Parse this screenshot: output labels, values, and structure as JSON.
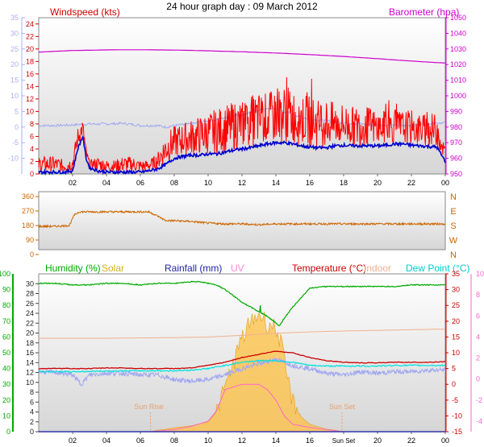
{
  "title": "24 hour graph day : 09 March 2012",
  "colors": {
    "wind_gust": "#ff0000",
    "wind_avg": "#0000cc",
    "dir": "#cc6600",
    "baro": "#cc00cc",
    "hum": "#00aa00",
    "temp": "#cc0000",
    "indoor": "#f0b090",
    "dew": "#00e0e0",
    "chill": "#a0a8f0",
    "solar": "#ffc040",
    "uv": "#ff66cc",
    "rain": "#3333aa",
    "sun_marker": "#e8a070",
    "plot_bg_top": "#ffffff",
    "plot_bg_bottom": "#d8d8d8"
  },
  "chart_data": [
    {
      "type": "line",
      "id": "wind_baro",
      "left_label": "Windspeed (kts)",
      "right_label": "Barometer (hpa)",
      "wind_ylim": [
        0,
        25
      ],
      "wind_ticks": [
        0,
        2,
        4,
        6,
        8,
        10,
        12,
        14,
        16,
        18,
        20,
        22,
        24
      ],
      "baro_ylim": [
        950,
        1050
      ],
      "baro_ticks": [
        950,
        960,
        970,
        980,
        990,
        1000,
        1010,
        1020,
        1030,
        1040,
        1050
      ],
      "temp_axis_ticks": [
        -10,
        -5,
        0,
        5,
        10,
        15,
        20,
        25,
        30,
        35
      ],
      "temp_ylim": [
        -15,
        35
      ],
      "x_ticks": [
        "02",
        "04",
        "06",
        "08",
        "10",
        "12",
        "14",
        "16",
        "18",
        "20",
        "22",
        "00"
      ],
      "x_range_hours": [
        0,
        24
      ],
      "series": [
        {
          "key": "gust",
          "x": [
            0,
            0.5,
            1,
            1.5,
            2,
            2.3,
            2.6,
            2.8,
            3,
            3.5,
            4,
            4.5,
            5,
            5.5,
            6,
            6.5,
            7,
            7.5,
            8,
            8.5,
            9,
            9.5,
            10,
            10.5,
            11,
            11.5,
            12,
            12.5,
            13,
            13.5,
            14,
            14.5,
            15,
            15.5,
            16,
            16.5,
            17,
            17.5,
            18,
            18.5,
            19,
            19.5,
            20,
            20.5,
            21,
            21.5,
            22,
            22.5,
            23,
            23.5,
            24
          ],
          "y": [
            2.5,
            2.5,
            2.5,
            2,
            2.5,
            7,
            8.5,
            4,
            2,
            2.5,
            2,
            2,
            2.5,
            2.5,
            2,
            2,
            3,
            6,
            7,
            7.5,
            8,
            8.5,
            9,
            9.5,
            10,
            10.5,
            11,
            11.5,
            12,
            12,
            12.5,
            13,
            12.5,
            12,
            11.5,
            11,
            11,
            10.5,
            10.5,
            10,
            10,
            10,
            9.5,
            9.5,
            9.5,
            9.5,
            9.5,
            9,
            9,
            9,
            4
          ]
        },
        {
          "key": "avg",
          "x": [
            0,
            0.5,
            1,
            1.5,
            2,
            2.3,
            2.6,
            2.8,
            3,
            3.5,
            4,
            4.5,
            5,
            5.5,
            6,
            6.5,
            7,
            7.5,
            8,
            8.5,
            9,
            9.5,
            10,
            10.5,
            11,
            11.5,
            12,
            12.5,
            13,
            13.5,
            14,
            14.5,
            15,
            15.5,
            16,
            16.5,
            17,
            17.5,
            18,
            18.5,
            19,
            19.5,
            20,
            20.5,
            21,
            21.5,
            22,
            22.5,
            23,
            23.5,
            24
          ],
          "y": [
            0.3,
            0.3,
            0.3,
            0.3,
            0.5,
            4,
            6,
            2.5,
            1,
            0.5,
            0.3,
            0.3,
            0.3,
            0.3,
            0.3,
            0.5,
            0.8,
            1.5,
            2.5,
            2.8,
            3,
            3,
            3.2,
            3.2,
            3.5,
            3.8,
            4,
            4.2,
            4.5,
            4.8,
            5,
            5,
            4.8,
            4.5,
            4.3,
            4.2,
            4.2,
            4.5,
            4.6,
            4.5,
            4.5,
            4.5,
            4.5,
            4.6,
            4.8,
            4.8,
            4.6,
            4.5,
            4.4,
            4.3,
            2
          ]
        },
        {
          "key": "baro",
          "x": [
            0,
            1,
            2,
            3,
            4,
            5,
            6,
            7,
            8,
            9,
            10,
            11,
            12,
            13,
            14,
            15,
            16,
            17,
            18,
            19,
            20,
            21,
            22,
            23,
            24
          ],
          "y": [
            1028,
            1028.5,
            1029,
            1029.2,
            1029.4,
            1029.5,
            1029.5,
            1029.4,
            1029.3,
            1029.1,
            1028.8,
            1028.5,
            1028.2,
            1027.8,
            1027.4,
            1026.9,
            1026.4,
            1025.8,
            1025.2,
            1024.5,
            1023.8,
            1023,
            1022.3,
            1021.6,
            1021
          ]
        },
        {
          "key": "windchill",
          "x": [
            0,
            1,
            2,
            3,
            4,
            5,
            6,
            7,
            7.5,
            8,
            9,
            10,
            11,
            12,
            13,
            14,
            15,
            16,
            17,
            18,
            19,
            20,
            21,
            22,
            23,
            24
          ],
          "y": [
            0.5,
            0.5,
            0.7,
            1,
            1,
            1.2,
            0.5,
            0.5,
            0,
            0.5,
            1,
            2,
            3,
            4,
            5.5,
            6,
            4,
            2.5,
            2,
            1.5,
            1,
            0.8,
            0.5,
            0.5,
            1.2,
            1.5
          ]
        }
      ]
    },
    {
      "type": "line",
      "id": "direction",
      "ylim": [
        0,
        360
      ],
      "ticks": [
        0,
        90,
        180,
        270,
        360
      ],
      "compass": [
        "N",
        "W",
        "S",
        "E",
        "N"
      ],
      "x_range_hours": [
        0,
        24
      ],
      "series": [
        {
          "key": "dir",
          "x": [
            0,
            1,
            1.8,
            2.1,
            2.4,
            3,
            4,
            5,
            6,
            6.5,
            7,
            7.5,
            8,
            9,
            10,
            11,
            12,
            13,
            14,
            15,
            16,
            17,
            18,
            19,
            20,
            21,
            22,
            23,
            24
          ],
          "y": [
            175,
            175,
            180,
            245,
            265,
            265,
            265,
            265,
            265,
            265,
            240,
            210,
            210,
            205,
            195,
            190,
            190,
            185,
            190,
            190,
            190,
            190,
            190,
            190,
            190,
            190,
            190,
            190,
            190
          ]
        }
      ]
    },
    {
      "type": "line",
      "id": "multi",
      "labels": [
        "Humidity (%)",
        "Solar",
        "Rainfall (mm)",
        "UV",
        "Temperature (°C)",
        "Indoor",
        "Dew Point (°C)"
      ],
      "hum_ylim": [
        0,
        100
      ],
      "hum_ticks": [
        0,
        10,
        20,
        30,
        40,
        50,
        60,
        70,
        80,
        90,
        100
      ],
      "rain_ylim": [
        0,
        32
      ],
      "rain_ticks": [
        0,
        2,
        4,
        6,
        8,
        10,
        12,
        14,
        16,
        18,
        20,
        22,
        24,
        26,
        28,
        30
      ],
      "temp_ylim": [
        -15,
        35
      ],
      "temp_ticks": [
        -15,
        -10,
        -5,
        0,
        5,
        10,
        15,
        20,
        25,
        30,
        35
      ],
      "uv_ylim": [
        -5,
        10
      ],
      "uv_ticks": [
        -4,
        -2,
        0,
        2,
        4,
        6,
        8,
        10
      ],
      "x_ticks": [
        "02",
        "04",
        "06",
        "08",
        "10",
        "12",
        "14",
        "16",
        "Sun Set",
        "20",
        "22",
        "00"
      ],
      "sun_rise_label": "Sun Rise",
      "sun_set_label": "Sun Set",
      "sun_rise_hour": 6.6,
      "sun_set_hour": 17.9,
      "series": [
        {
          "key": "humidity",
          "x": [
            0,
            1,
            2,
            3,
            4,
            5,
            6,
            7,
            8,
            9,
            9.5,
            10,
            10.5,
            11,
            12,
            12.5,
            13,
            13.5,
            14,
            14.2,
            14.5,
            15,
            15.5,
            16,
            17,
            18,
            19,
            20,
            21,
            22,
            23,
            24
          ],
          "y": [
            94,
            94,
            93,
            93,
            94,
            94,
            93,
            94,
            94,
            95,
            95,
            94,
            93,
            90,
            82,
            79,
            76,
            73,
            69,
            67,
            72,
            79,
            85,
            91,
            92,
            92,
            92,
            92,
            92,
            93,
            93,
            93
          ]
        },
        {
          "key": "indoor",
          "x": [
            0,
            2,
            4,
            6,
            8,
            10,
            12,
            14,
            16,
            18,
            20,
            22,
            24
          ],
          "y": [
            14.6,
            14.6,
            14.6,
            14.7,
            14.8,
            15.0,
            15.5,
            16.2,
            16.6,
            16.9,
            17.1,
            17.3,
            17.5
          ]
        },
        {
          "key": "temperature",
          "x": [
            0,
            1,
            2,
            3,
            4,
            5,
            6,
            7,
            8,
            9,
            10,
            11,
            12,
            13,
            14,
            15,
            16,
            17,
            18,
            19,
            20,
            21,
            22,
            23,
            24
          ],
          "y": [
            5,
            5,
            5,
            5,
            5.2,
            5.2,
            5,
            5,
            5,
            5.2,
            6,
            7,
            8.5,
            9.5,
            10.5,
            10,
            8.5,
            7.5,
            7,
            6.8,
            6.8,
            7,
            7,
            7,
            7.2
          ]
        },
        {
          "key": "dewpoint",
          "x": [
            0,
            2,
            4,
            6,
            8,
            9,
            10,
            11,
            12,
            13,
            14,
            15,
            16,
            17,
            18,
            19,
            20,
            21,
            22,
            23,
            24
          ],
          "y": [
            4,
            4,
            4.2,
            4.3,
            4.3,
            4.5,
            5,
            6,
            7,
            7.5,
            7.5,
            7,
            6,
            5.8,
            5.8,
            5.8,
            5.8,
            6,
            6,
            6,
            6
          ]
        },
        {
          "key": "chill",
          "x": [
            0,
            1,
            2,
            2.5,
            3,
            4,
            5,
            6,
            7,
            8,
            9,
            10,
            11,
            12,
            13,
            14,
            15,
            16,
            17,
            18,
            19,
            20,
            21,
            22,
            23,
            24
          ],
          "y": [
            4,
            3.8,
            3,
            0,
            3,
            3.5,
            3.5,
            3,
            3,
            1.5,
            1,
            1.5,
            3,
            5,
            6.5,
            8,
            6,
            5,
            3.5,
            3,
            4,
            3.5,
            4,
            4,
            4.5,
            4.5
          ]
        },
        {
          "key": "solar",
          "x": [
            6.6,
            7,
            7.5,
            8,
            9,
            10,
            10.5,
            11,
            11.5,
            12,
            12.5,
            13,
            13.5,
            14,
            14.3,
            14.6,
            15,
            15.5,
            16,
            16.5,
            17,
            17.5,
            17.9
          ],
          "y": [
            0,
            0.3,
            0.5,
            0.8,
            1.2,
            2,
            4,
            9,
            14,
            19,
            22,
            24,
            22,
            21,
            18,
            12,
            6,
            3,
            1.5,
            1,
            0.5,
            0.3,
            0
          ]
        },
        {
          "key": "uv",
          "x": [
            6.6,
            8,
            9,
            10,
            10.5,
            11,
            12,
            13,
            13.5,
            14,
            14.5,
            15,
            16,
            17,
            17.9
          ],
          "y": [
            -5,
            -4.8,
            -4.5,
            -4,
            -3,
            -1,
            -0.5,
            -0.5,
            -1,
            -2,
            -3.5,
            -4.3,
            -4.6,
            -4.8,
            -5
          ]
        },
        {
          "key": "rain",
          "x": [
            0,
            24
          ],
          "y": [
            0,
            0
          ]
        }
      ]
    }
  ]
}
